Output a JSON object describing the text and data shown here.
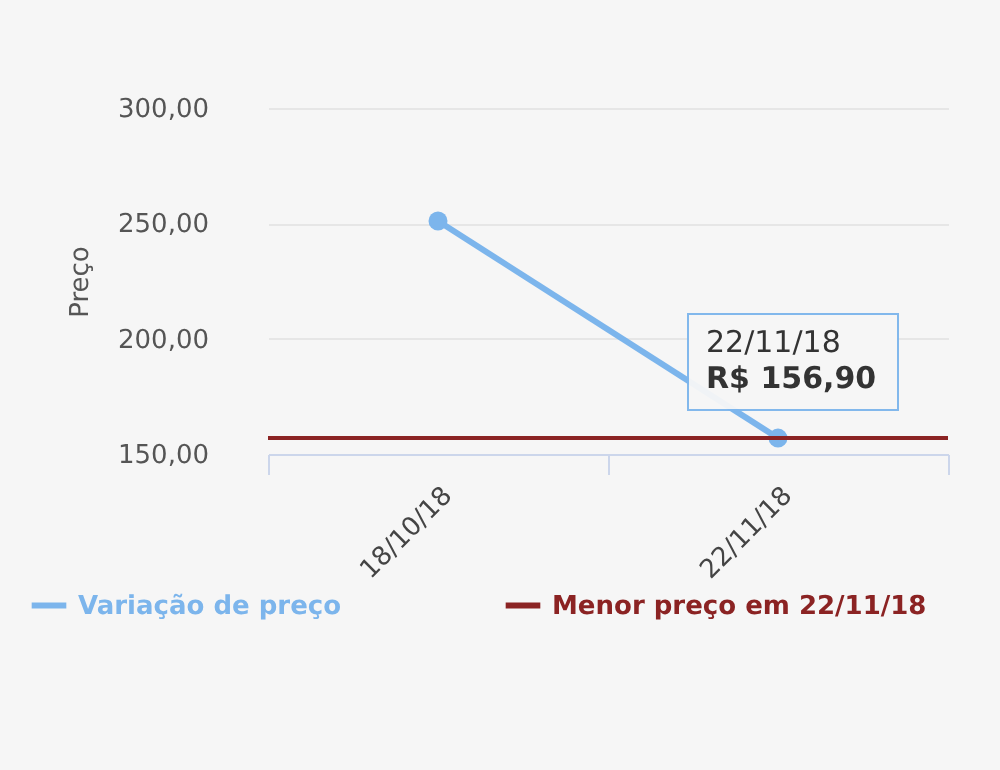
{
  "chart_data": {
    "type": "line",
    "ylabel": "Preço",
    "categories": [
      "18/10/18",
      "22/11/18"
    ],
    "series": [
      {
        "name": "Variação de preço",
        "color": "#7cb5ec",
        "values": [
          251,
          156.9
        ]
      }
    ],
    "ref_lines": [
      {
        "axis": "y",
        "value": 156.9,
        "label": "Menor preço em 22/11/18",
        "color": "#8b2323"
      }
    ],
    "annotations": [
      {
        "text": "22/11/18\nR$ 156,90",
        "x": "22/11/18",
        "y": 156.9
      }
    ],
    "ylim": [
      150,
      300
    ],
    "yticks": [
      {
        "value": 150,
        "label": "150,00"
      },
      {
        "value": 200,
        "label": "200,00"
      },
      {
        "value": 250,
        "label": "250,00"
      },
      {
        "value": 300,
        "label": "300,00"
      }
    ],
    "grid": "y",
    "legend": "bottom",
    "marker": "circle",
    "line_style": "solid"
  }
}
